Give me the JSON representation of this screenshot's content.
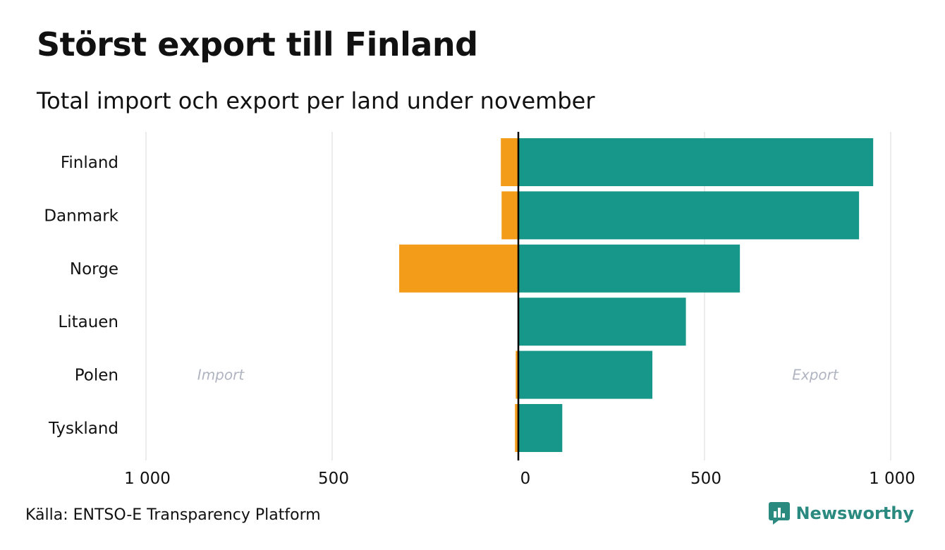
{
  "title": "Störst export till Finland",
  "subtitle": "Total import och export per land under november",
  "source": "Källa: ENTSO-E Transparency Platform",
  "brand": "Newsworthy",
  "colors": {
    "import": "#f39c1a",
    "export": "#17978a",
    "grid": "#e6e6e6",
    "zero_line": "#000000",
    "side_label": "#b0b4c0",
    "brand": "#2a8a80"
  },
  "chart_data": {
    "type": "bar",
    "orientation": "horizontal-diverging",
    "categories": [
      "Finland",
      "Danmark",
      "Norge",
      "Litauen",
      "Polen",
      "Tyskland"
    ],
    "series": [
      {
        "name": "Import",
        "values": [
          47,
          45,
          320,
          0,
          7,
          9
        ]
      },
      {
        "name": "Export",
        "values": [
          953,
          915,
          595,
          450,
          360,
          118
        ]
      }
    ],
    "xlim": [
      -1000,
      1000
    ],
    "ticks": [
      -1000,
      -500,
      0,
      500,
      1000
    ],
    "tick_labels": [
      "1 000",
      "500",
      "0",
      "500",
      "1 000"
    ],
    "side_labels": {
      "left": "Import",
      "right": "Export"
    }
  }
}
